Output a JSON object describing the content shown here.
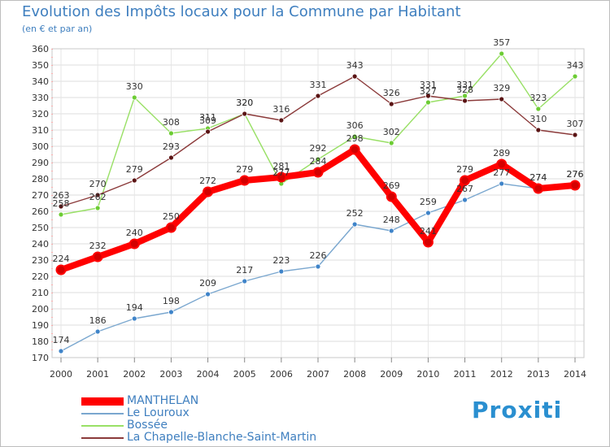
{
  "title": "Evolution des Impôts locaux pour la Commune par Habitant",
  "subtitle": "(en € et par an)",
  "logo_text": "Proxiti",
  "chart_data": {
    "type": "line",
    "title": "Evolution des Impôts locaux pour la Commune par Habitant",
    "subtitle": "(en € et par an)",
    "xlabel": "",
    "ylabel": "",
    "ylim": [
      170,
      360
    ],
    "ytick_step": 10,
    "grid": true,
    "legend_position": "bottom-left",
    "x": [
      "2000",
      "2001",
      "2002",
      "2003",
      "2004",
      "2005",
      "2006",
      "2007",
      "2008",
      "2009",
      "2010",
      "2011",
      "2012",
      "2013",
      "2014"
    ],
    "yticks": [
      "170",
      "180",
      "190",
      "200",
      "210",
      "220",
      "230",
      "240",
      "250",
      "260",
      "270",
      "280",
      "290",
      "300",
      "310",
      "320",
      "330",
      "340",
      "350",
      "360"
    ],
    "series": [
      {
        "name": "MANTHELAN",
        "color": "#ff0000",
        "marker_color": "#d40000",
        "bold": true,
        "values": [
          224,
          232,
          240,
          250,
          272,
          279,
          281,
          284,
          298,
          269,
          241,
          279,
          289,
          274,
          276
        ],
        "labels": [
          "224",
          "232",
          "240",
          "250",
          "272",
          "279",
          "281",
          "284",
          "298",
          "269",
          "241",
          "279",
          "289",
          "274",
          "276"
        ]
      },
      {
        "name": "Le Louroux",
        "color": "#7aa7cf",
        "marker_color": "#3f84c9",
        "bold": false,
        "values": [
          174,
          186,
          194,
          198,
          209,
          217,
          223,
          226,
          252,
          248,
          259,
          267,
          277,
          274,
          276
        ],
        "labels": [
          "174",
          "186",
          "194",
          "198",
          "209",
          "217",
          "223",
          "226",
          "252",
          "248",
          "259",
          "267",
          "277",
          "274",
          "276"
        ]
      },
      {
        "name": "Bossée",
        "color": "#99e066",
        "marker_color": "#6ccc33",
        "bold": false,
        "values": [
          258,
          262,
          330,
          308,
          311,
          320,
          277,
          292,
          306,
          302,
          327,
          331,
          357,
          323,
          343
        ],
        "labels": [
          "258",
          "262",
          "330",
          "308",
          "311",
          "320",
          "277",
          "292",
          "306",
          "302",
          "327",
          "331",
          "357",
          "323",
          "343"
        ]
      },
      {
        "name": "La Chapelle-Blanche-Saint-Martin",
        "color": "#8b3a3a",
        "marker_color": "#5a1414",
        "bold": false,
        "values": [
          263,
          270,
          279,
          293,
          309,
          320,
          316,
          331,
          343,
          326,
          331,
          328,
          329,
          310,
          307
        ],
        "labels": [
          "263",
          "270",
          "279",
          "293",
          "309",
          "320",
          "316",
          "331",
          "343",
          "326",
          "331",
          "328",
          "329",
          "310",
          "307"
        ]
      }
    ]
  }
}
